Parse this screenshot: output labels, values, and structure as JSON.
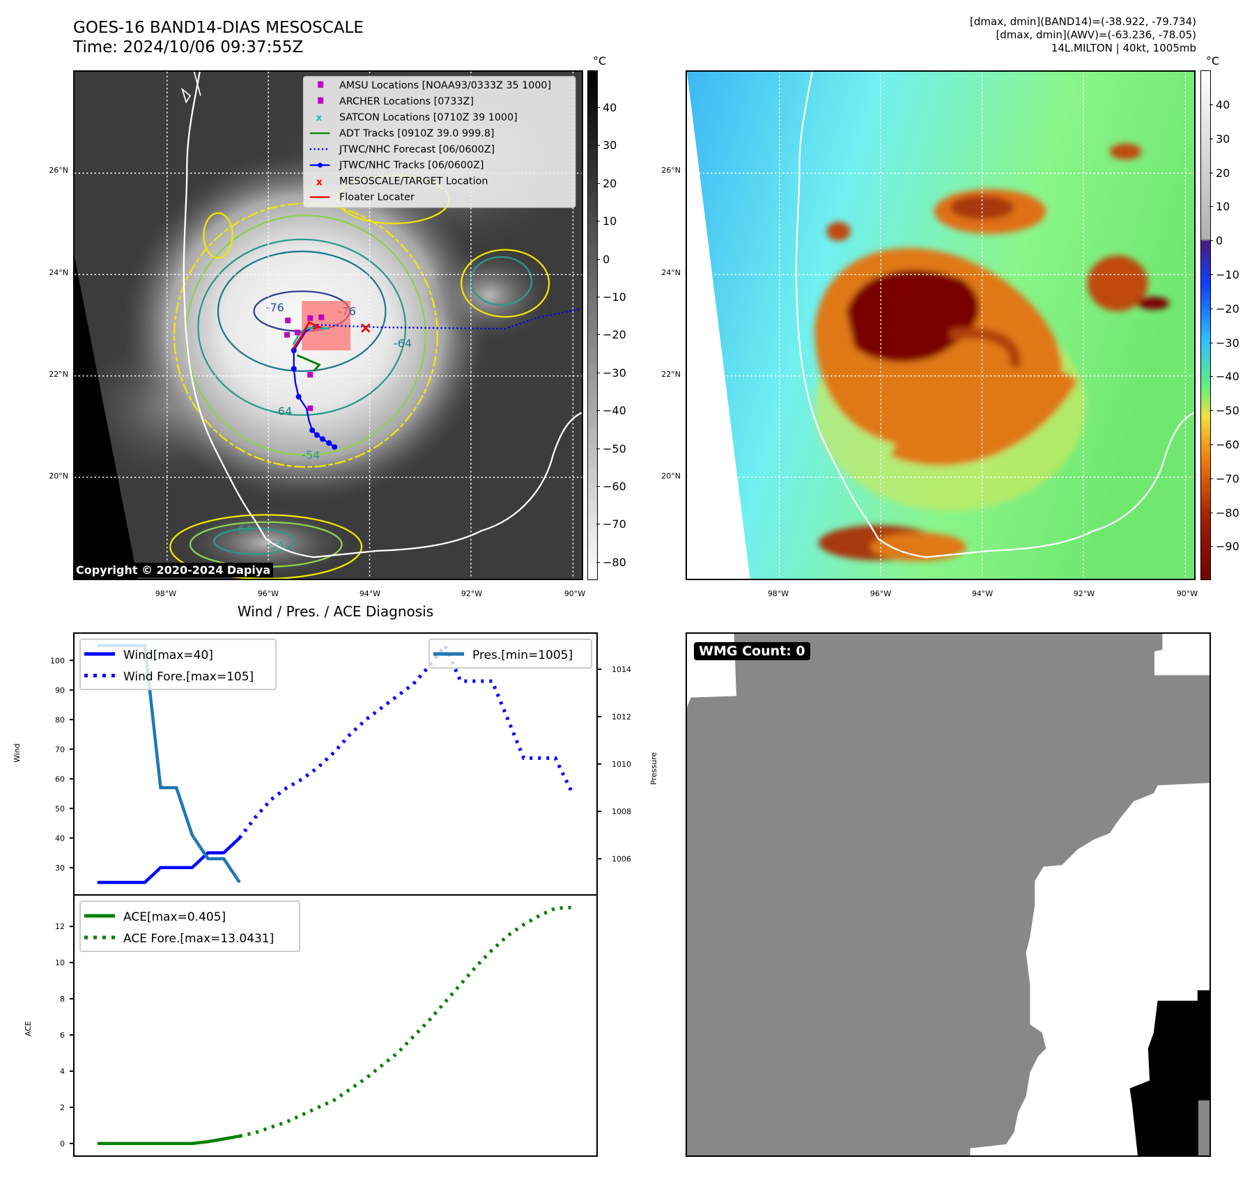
{
  "header": {
    "title_line1": "GOES-16 BAND14-DIAS MESOSCALE",
    "title_line2": "Time: 2024/10/06 09:37:55Z",
    "right_line1": "[dmax, dmin](BAND14)=(-38.922, -79.734)",
    "right_line2": "[dmax, dmin](AWV)=(-63.236, -78.05)",
    "right_line3": "14L.MILTON | 40kt, 1005mb"
  },
  "map": {
    "lat_labels": [
      "26°N",
      "24°N",
      "22°N",
      "20°N"
    ],
    "lon_labels": [
      "98°W",
      "96°W",
      "94°W",
      "92°W",
      "90°W"
    ],
    "copyright": "Copyright © 2020-2024 Dapiya",
    "contour_labels": [
      "-76",
      "-76",
      "-64",
      "-64",
      "-54",
      "-64",
      "-54"
    ],
    "legend": [
      "AMSU Locations [NOAA93/0333Z 35 1000]",
      "ARCHER Locations [0733Z]",
      "SATCON Locations [0710Z 39 1000]",
      "ADT Tracks [0910Z 39.0 999.8]",
      "JTWC/NHC Forecast [06/0600Z]",
      "JTWC/NHC Tracks [06/0600Z]",
      "MESOSCALE/TARGET Location",
      "Floater Locater"
    ]
  },
  "colorbar_left": {
    "unit": "°C",
    "ticks": [
      "40",
      "30",
      "20",
      "10",
      "0",
      "−10",
      "−20",
      "−30",
      "−40",
      "−50",
      "−60",
      "−70",
      "−80"
    ]
  },
  "colorbar_right": {
    "unit": "°C",
    "ticks": [
      "40",
      "30",
      "20",
      "10",
      "0",
      "−10",
      "−20",
      "−30",
      "−40",
      "−50",
      "−60",
      "−70",
      "−80",
      "−90"
    ]
  },
  "colors": {
    "wind": "#0000ff",
    "pressure": "#1f77b4",
    "ace": "#008000",
    "track": "#0000ff",
    "adt": "#008000",
    "floater": "#ff0000",
    "archer": "#c000c0",
    "satcon": "#00bfbf"
  },
  "chart_data": [
    {
      "type": "line",
      "title": "Wind / Pres. / ACE Diagnosis",
      "ylabel": "Wind",
      "y2label": "Pressure",
      "xlim": [
        -1.45,
        31.6
      ],
      "ylim": [
        21,
        109
      ],
      "y2lim": [
        1004.5,
        1015.5
      ],
      "yticks": [
        30,
        40,
        50,
        60,
        70,
        80,
        90,
        100
      ],
      "y2ticks": [
        1006,
        1008,
        1010,
        1012,
        1014
      ],
      "legend_left": [
        "Wind[max=40]",
        "Wind Fore.[max=105]"
      ],
      "legend_right": [
        "Pres.[min=1005]"
      ],
      "series": [
        {
          "name": "Wind[max=40]",
          "axis": "left",
          "style": "solid",
          "x": [
            0,
            1,
            2,
            3,
            4,
            5,
            6,
            7,
            8,
            9
          ],
          "values": [
            25,
            25,
            25,
            25,
            30,
            30,
            30,
            35,
            35,
            40
          ]
        },
        {
          "name": "Wind Fore.[max=105]",
          "axis": "left",
          "style": "dotted",
          "x": [
            9,
            10,
            11,
            12,
            13,
            14,
            15,
            16,
            17,
            18,
            19,
            20,
            21,
            22,
            23,
            24,
            25,
            26,
            27,
            28,
            29,
            30
          ],
          "values": [
            40,
            47,
            53,
            57,
            60,
            64,
            69,
            75,
            80,
            84,
            88,
            92,
            98,
            105,
            93,
            93,
            93,
            80,
            67,
            67,
            67,
            56
          ]
        },
        {
          "name": "Pres.[min=1005]",
          "axis": "right",
          "style": "solid",
          "x": [
            0,
            1,
            2,
            3,
            4,
            5,
            6,
            7,
            8,
            9
          ],
          "values": [
            1015,
            1015,
            1015,
            1015,
            1009,
            1009,
            1007,
            1006,
            1006,
            1005
          ]
        }
      ]
    },
    {
      "type": "line",
      "ylabel": "ACE",
      "xlim": [
        -1.45,
        31.6
      ],
      "ylim": [
        -0.66,
        13.7
      ],
      "yticks": [
        0,
        2,
        4,
        6,
        8,
        10,
        12
      ],
      "legend": [
        "ACE[max=0.405]",
        "ACE Fore.[max=13.0431]"
      ],
      "series": [
        {
          "name": "ACE[max=0.405]",
          "style": "solid",
          "x": [
            0,
            1,
            2,
            3,
            4,
            5,
            6,
            7,
            8,
            9
          ],
          "values": [
            0,
            0,
            0,
            0,
            0,
            0,
            0,
            0.1,
            0.25,
            0.405
          ]
        },
        {
          "name": "ACE Fore.[max=13.0431]",
          "style": "dotted",
          "x": [
            9,
            10,
            11,
            12,
            13,
            14,
            15,
            16,
            17,
            18,
            19,
            20,
            21,
            22,
            23,
            24,
            25,
            26,
            27,
            28,
            29,
            30
          ],
          "values": [
            0.405,
            0.6,
            0.9,
            1.2,
            1.6,
            2.0,
            2.4,
            3.0,
            3.6,
            4.3,
            5.0,
            5.9,
            6.8,
            7.8,
            8.8,
            9.8,
            10.7,
            11.5,
            12.1,
            12.6,
            13.0,
            13.0431
          ]
        }
      ]
    }
  ],
  "wmg": {
    "badge": "WMG Count: 0"
  }
}
